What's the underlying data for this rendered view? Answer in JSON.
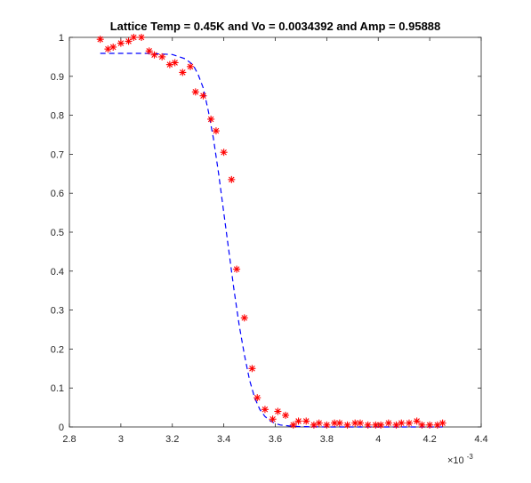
{
  "chart_data": {
    "type": "scatter",
    "title": "Lattice Temp = 0.45K and Vo = 0.0034392 and Amp = 0.95888",
    "xlabel": "",
    "ylabel": "",
    "x_exponent_label": "×10",
    "x_exponent_power": "-3",
    "xlim": [
      2.8,
      4.4
    ],
    "ylim": [
      0,
      1
    ],
    "x_ticks": [
      "2.8",
      "3",
      "3.2",
      "3.4",
      "3.6",
      "3.8",
      "4",
      "4.2",
      "4.4"
    ],
    "y_ticks": [
      "0",
      "0.1",
      "0.2",
      "0.3",
      "0.4",
      "0.5",
      "0.6",
      "0.7",
      "0.8",
      "0.9",
      "1"
    ],
    "grid": false,
    "series": [
      {
        "style": "marker-star",
        "color": "#ff0000",
        "x": [
          2.92,
          2.95,
          2.97,
          3.0,
          3.03,
          3.05,
          3.08,
          3.11,
          3.13,
          3.16,
          3.19,
          3.21,
          3.24,
          3.27,
          3.29,
          3.32,
          3.35,
          3.37,
          3.4,
          3.43,
          3.45,
          3.48,
          3.51,
          3.53,
          3.56,
          3.59,
          3.61,
          3.64,
          3.67,
          3.69,
          3.72,
          3.75,
          3.77,
          3.8,
          3.83,
          3.85,
          3.88,
          3.91,
          3.93,
          3.96,
          3.99,
          4.01,
          4.04,
          4.07,
          4.09,
          4.12,
          4.15,
          4.17,
          4.2,
          4.23,
          4.25
        ],
        "y": [
          0.995,
          0.97,
          0.975,
          0.985,
          0.99,
          1.0,
          1.0,
          0.965,
          0.955,
          0.95,
          0.93,
          0.935,
          0.91,
          0.925,
          0.86,
          0.85,
          0.79,
          0.76,
          0.705,
          0.635,
          0.405,
          0.28,
          0.15,
          0.075,
          0.045,
          0.02,
          0.04,
          0.03,
          0.005,
          0.015,
          0.015,
          0.005,
          0.01,
          0.005,
          0.01,
          0.01,
          0.005,
          0.01,
          0.01,
          0.005,
          0.005,
          0.005,
          0.01,
          0.005,
          0.01,
          0.01,
          0.015,
          0.005,
          0.005,
          0.005,
          0.01
        ]
      },
      {
        "style": "dashed-line",
        "color": "#0000ff",
        "x": [
          2.92,
          3.0,
          3.1,
          3.2,
          3.25,
          3.28,
          3.3,
          3.32,
          3.34,
          3.36,
          3.38,
          3.4,
          3.42,
          3.44,
          3.46,
          3.48,
          3.5,
          3.52,
          3.54,
          3.56,
          3.58,
          3.6,
          3.62,
          3.66,
          3.7,
          3.8,
          4.0,
          4.25
        ],
        "y": [
          0.959,
          0.959,
          0.959,
          0.956,
          0.945,
          0.93,
          0.905,
          0.87,
          0.81,
          0.74,
          0.65,
          0.55,
          0.45,
          0.35,
          0.26,
          0.185,
          0.12,
          0.075,
          0.045,
          0.027,
          0.016,
          0.009,
          0.005,
          0.002,
          0.001,
          0.0,
          0.0,
          0.0
        ]
      }
    ]
  }
}
